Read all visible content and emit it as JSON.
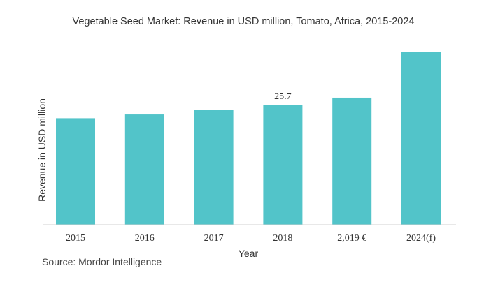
{
  "chart_data": {
    "type": "bar",
    "title": "Vegetable Seed Market: Revenue in USD million, Tomato, Africa, 2015-2024",
    "xlabel": "Year",
    "ylabel": "Revenue in USD million",
    "categories": [
      "2015",
      "2016",
      "2017",
      "2018",
      "2,019 €",
      "2024(f)"
    ],
    "values": [
      22.8,
      23.6,
      24.6,
      25.7,
      27.2,
      37.0
    ],
    "data_labels": [
      null,
      null,
      null,
      "25.7",
      null,
      null
    ],
    "ylim": [
      0,
      37.0
    ],
    "grid": false,
    "bar_color": "#52C4C9",
    "source": "Source: Mordor Intelligence"
  }
}
